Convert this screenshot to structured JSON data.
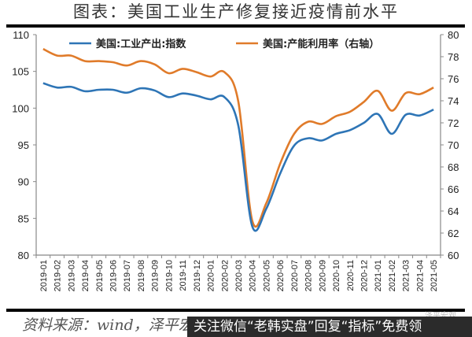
{
  "title": "图表：美国工业生产修复接近疫情前水平",
  "source": "资料来源：wind，泽平宏观",
  "banner": "关注微信“老韩实盘”回复“指标”免费领",
  "watermark": "泽平宏观",
  "colors": {
    "industrial_output": "#2e75b6",
    "capacity_utilization": "#e07b2a",
    "axis": "#888888",
    "rule": "#000000"
  },
  "chart_data": {
    "type": "line",
    "title": "图表：美国工业生产修复接近疫情前水平",
    "xlabel": "",
    "ylabel_left": "",
    "ylabel_right": "",
    "x": [
      "2019-01",
      "2019-02",
      "2019-03",
      "2019-04",
      "2019-05",
      "2019-06",
      "2019-07",
      "2019-08",
      "2019-09",
      "2019-10",
      "2019-11",
      "2019-12",
      "2020-01",
      "2020-02",
      "2020-03",
      "2020-04",
      "2020-05",
      "2020-06",
      "2020-07",
      "2020-08",
      "2020-09",
      "2020-10",
      "2020-11",
      "2020-12",
      "2021-01",
      "2021-02",
      "2021-03",
      "2021-04",
      "2021-05"
    ],
    "series": [
      {
        "name": "美国:工业产出:指数",
        "axis": "left",
        "values": [
          103.4,
          102.8,
          102.9,
          102.3,
          102.5,
          102.5,
          102.1,
          102.7,
          102.4,
          101.5,
          102.0,
          101.7,
          101.2,
          101.5,
          97.6,
          83.9,
          86.3,
          91.1,
          94.9,
          95.9,
          95.6,
          96.5,
          97.0,
          98.0,
          99.2,
          96.5,
          99.1,
          99.0,
          99.8
        ]
      },
      {
        "name": "美国:产能利用率（右轴）",
        "axis": "right",
        "values": [
          78.7,
          78.1,
          78.1,
          77.6,
          77.6,
          77.5,
          77.2,
          77.6,
          77.3,
          76.5,
          76.9,
          76.6,
          76.2,
          76.6,
          73.9,
          63.1,
          64.7,
          68.3,
          71.0,
          72.1,
          71.9,
          72.6,
          73.0,
          73.9,
          74.9,
          73.1,
          74.7,
          74.6,
          75.2
        ]
      }
    ],
    "ylim_left": [
      80,
      110
    ],
    "yticks_left": [
      80,
      85,
      90,
      95,
      100,
      105,
      110
    ],
    "ylim_right": [
      60,
      80
    ],
    "yticks_right": [
      60,
      62,
      64,
      66,
      68,
      70,
      72,
      74,
      76,
      78,
      80
    ],
    "grid": false,
    "legend_position": "top"
  }
}
